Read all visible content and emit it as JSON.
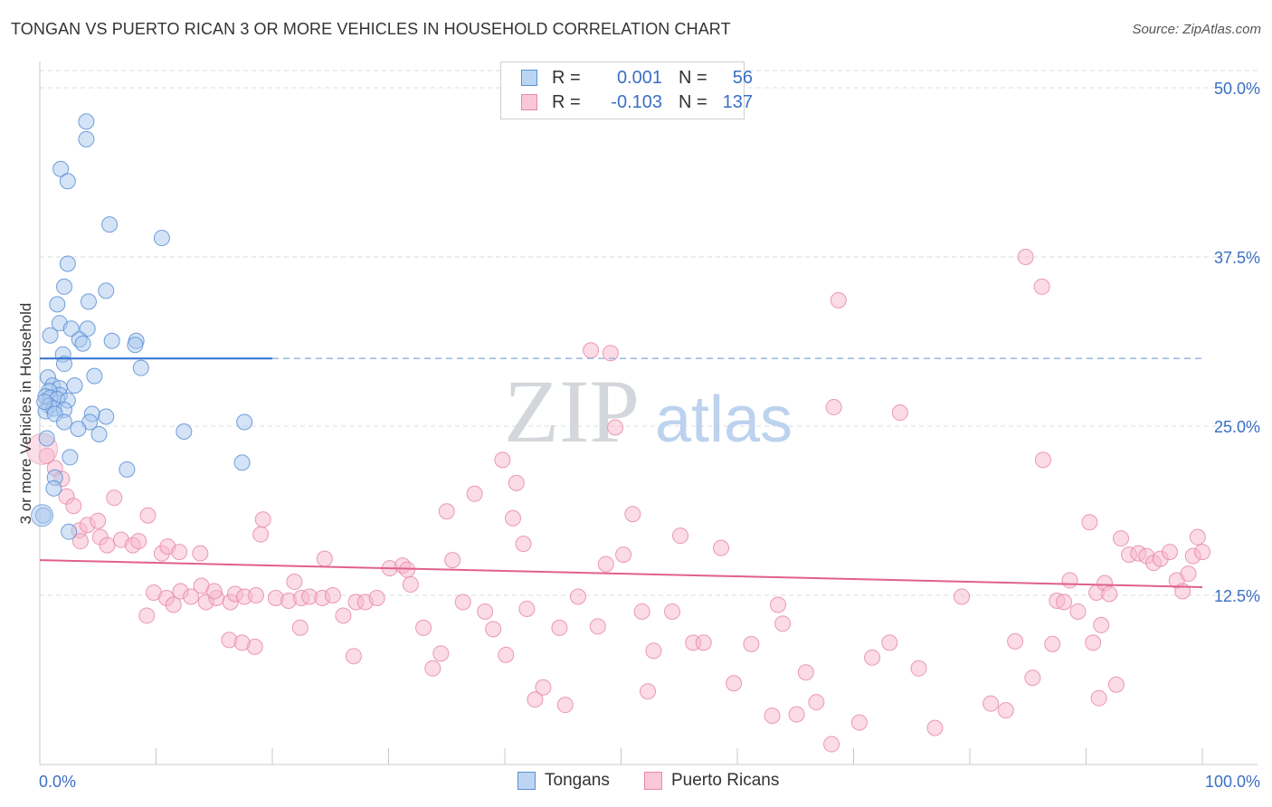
{
  "title": "TONGAN VS PUERTO RICAN 3 OR MORE VEHICLES IN HOUSEHOLD CORRELATION CHART",
  "source": "Source: ZipAtlas.com",
  "watermark": {
    "zip": "ZIP",
    "atlas": "atlas"
  },
  "colors": {
    "tongan_fill": "#a9c8ee",
    "tongan_stroke": "#5a8fd6",
    "tongan_line": "#2e6fd0",
    "pr_fill": "#f7b8cb",
    "pr_stroke": "#e88aa8",
    "pr_line": "#e0608d",
    "axis_text": "#3a6fc4",
    "grid": "#d8dde6"
  },
  "legend": {
    "rows": [
      {
        "r_label": "R =",
        "r_value": "0.001",
        "n_label": "N =",
        "n_value": "56"
      },
      {
        "r_label": "R =",
        "r_value": "-0.103",
        "n_label": "N =",
        "n_value": "137"
      }
    ]
  },
  "bottom_legend": {
    "tongans": "Tongans",
    "puerto_ricans": "Puerto Ricans"
  },
  "chart_data": {
    "type": "scatter",
    "title": "TONGAN VS PUERTO RICAN 3 OR MORE VEHICLES IN HOUSEHOLD CORRELATION CHART",
    "xlabel": "",
    "ylabel": "3 or more Vehicles in Household",
    "xlim": [
      0,
      100
    ],
    "ylim": [
      0,
      50
    ],
    "x_tick_labels": [
      "0.0%",
      "100.0%"
    ],
    "y_ticks": [
      12.5,
      25.0,
      37.5,
      50.0
    ],
    "y_tick_labels": [
      "12.5%",
      "25.0%",
      "37.5%",
      "50.0%"
    ],
    "grid": true,
    "series": [
      {
        "name": "Tongans",
        "R": 0.001,
        "N": 56,
        "trend": {
          "x": [
            0,
            20
          ],
          "y": [
            30.0,
            30.0
          ],
          "dashed_extension_to": 100
        },
        "points": [
          [
            4.0,
            46.2
          ],
          [
            4.0,
            47.5
          ],
          [
            1.8,
            44.0
          ],
          [
            2.4,
            43.1
          ],
          [
            6.0,
            39.9
          ],
          [
            10.5,
            38.9
          ],
          [
            2.4,
            37.0
          ],
          [
            2.1,
            35.3
          ],
          [
            5.7,
            35.0
          ],
          [
            1.5,
            34.0
          ],
          [
            4.2,
            34.2
          ],
          [
            1.7,
            32.6
          ],
          [
            0.9,
            31.7
          ],
          [
            2.7,
            32.2
          ],
          [
            4.1,
            32.2
          ],
          [
            3.4,
            31.4
          ],
          [
            3.7,
            31.1
          ],
          [
            6.2,
            31.3
          ],
          [
            8.3,
            31.3
          ],
          [
            8.2,
            31.0
          ],
          [
            2.0,
            30.3
          ],
          [
            2.1,
            29.6
          ],
          [
            8.7,
            29.3
          ],
          [
            4.7,
            28.7
          ],
          [
            0.7,
            28.6
          ],
          [
            1.1,
            28.0
          ],
          [
            1.7,
            27.8
          ],
          [
            1.7,
            27.3
          ],
          [
            0.8,
            27.6
          ],
          [
            0.5,
            27.2
          ],
          [
            0.9,
            27.1
          ],
          [
            1.5,
            27.0
          ],
          [
            0.8,
            26.5
          ],
          [
            2.4,
            26.9
          ],
          [
            0.5,
            26.1
          ],
          [
            1.2,
            26.3
          ],
          [
            2.1,
            26.2
          ],
          [
            1.3,
            25.9
          ],
          [
            4.5,
            25.9
          ],
          [
            5.7,
            25.7
          ],
          [
            2.1,
            25.3
          ],
          [
            4.3,
            25.3
          ],
          [
            3.3,
            24.8
          ],
          [
            12.4,
            24.6
          ],
          [
            17.6,
            25.3
          ],
          [
            5.1,
            24.4
          ],
          [
            0.6,
            24.1
          ],
          [
            2.6,
            22.7
          ],
          [
            17.4,
            22.3
          ],
          [
            7.5,
            21.8
          ],
          [
            1.3,
            21.2
          ],
          [
            1.2,
            20.4
          ],
          [
            0.3,
            18.4
          ],
          [
            2.5,
            17.2
          ],
          [
            0.4,
            26.8
          ],
          [
            3.0,
            28.0
          ]
        ]
      },
      {
        "name": "Puerto Ricans",
        "R": -0.103,
        "N": 137,
        "trend": {
          "x": [
            0,
            100
          ],
          "y": [
            15.1,
            13.1
          ]
        },
        "points": [
          [
            0.6,
            22.8
          ],
          [
            1.3,
            21.9
          ],
          [
            1.9,
            21.1
          ],
          [
            2.3,
            19.8
          ],
          [
            2.9,
            19.1
          ],
          [
            3.4,
            17.3
          ],
          [
            4.1,
            17.7
          ],
          [
            5.2,
            16.8
          ],
          [
            5.8,
            16.2
          ],
          [
            6.4,
            19.7
          ],
          [
            7.0,
            16.6
          ],
          [
            8.0,
            16.2
          ],
          [
            8.5,
            16.5
          ],
          [
            9.3,
            18.4
          ],
          [
            10.5,
            15.6
          ],
          [
            11.0,
            16.1
          ],
          [
            12.0,
            15.7
          ],
          [
            13.8,
            15.6
          ],
          [
            3.5,
            16.5
          ],
          [
            5.0,
            18.0
          ],
          [
            9.8,
            12.7
          ],
          [
            10.9,
            12.3
          ],
          [
            12.1,
            12.8
          ],
          [
            13.0,
            12.4
          ],
          [
            13.9,
            13.2
          ],
          [
            14.3,
            12.0
          ],
          [
            15.2,
            12.3
          ],
          [
            16.4,
            12.0
          ],
          [
            16.8,
            12.6
          ],
          [
            17.6,
            12.4
          ],
          [
            18.6,
            12.5
          ],
          [
            19.0,
            17.0
          ],
          [
            19.2,
            18.1
          ],
          [
            20.3,
            12.3
          ],
          [
            21.4,
            12.1
          ],
          [
            21.9,
            13.5
          ],
          [
            22.5,
            12.3
          ],
          [
            23.2,
            12.4
          ],
          [
            24.3,
            12.3
          ],
          [
            25.2,
            12.5
          ],
          [
            26.1,
            11.0
          ],
          [
            27.2,
            12.0
          ],
          [
            28.0,
            12.0
          ],
          [
            29.0,
            12.3
          ],
          [
            30.1,
            14.5
          ],
          [
            31.2,
            14.7
          ],
          [
            31.6,
            14.4
          ],
          [
            31.9,
            13.3
          ],
          [
            33.0,
            10.1
          ],
          [
            33.8,
            7.1
          ],
          [
            34.5,
            8.2
          ],
          [
            35.0,
            18.7
          ],
          [
            35.5,
            15.1
          ],
          [
            36.4,
            12.0
          ],
          [
            37.4,
            20.0
          ],
          [
            38.3,
            11.3
          ],
          [
            39.0,
            10.0
          ],
          [
            39.8,
            22.5
          ],
          [
            40.1,
            8.1
          ],
          [
            40.7,
            18.2
          ],
          [
            41.0,
            20.8
          ],
          [
            41.6,
            16.3
          ],
          [
            41.9,
            11.5
          ],
          [
            42.6,
            4.8
          ],
          [
            43.3,
            5.7
          ],
          [
            44.7,
            10.1
          ],
          [
            45.2,
            4.4
          ],
          [
            46.3,
            12.4
          ],
          [
            47.4,
            30.6
          ],
          [
            48.0,
            10.2
          ],
          [
            48.7,
            14.8
          ],
          [
            49.1,
            30.4
          ],
          [
            49.5,
            24.9
          ],
          [
            50.2,
            15.5
          ],
          [
            51.0,
            18.5
          ],
          [
            51.8,
            11.3
          ],
          [
            52.3,
            5.4
          ],
          [
            54.4,
            11.3
          ],
          [
            56.2,
            9.0
          ],
          [
            57.1,
            9.0
          ],
          [
            59.7,
            6.0
          ],
          [
            61.2,
            8.9
          ],
          [
            63.0,
            3.6
          ],
          [
            63.9,
            10.4
          ],
          [
            65.1,
            3.7
          ],
          [
            65.9,
            6.8
          ],
          [
            66.8,
            4.6
          ],
          [
            68.1,
            1.5
          ],
          [
            68.7,
            34.3
          ],
          [
            70.5,
            3.1
          ],
          [
            71.6,
            7.9
          ],
          [
            73.1,
            9.0
          ],
          [
            75.6,
            7.1
          ],
          [
            77.0,
            2.7
          ],
          [
            79.3,
            12.4
          ],
          [
            81.8,
            4.5
          ],
          [
            83.1,
            4.0
          ],
          [
            85.4,
            6.4
          ],
          [
            86.2,
            35.3
          ],
          [
            86.3,
            22.5
          ],
          [
            87.1,
            8.9
          ],
          [
            87.5,
            12.1
          ],
          [
            88.1,
            12.0
          ],
          [
            88.6,
            13.6
          ],
          [
            89.3,
            11.3
          ],
          [
            90.3,
            17.9
          ],
          [
            90.9,
            12.7
          ],
          [
            91.6,
            13.4
          ],
          [
            92.0,
            12.6
          ],
          [
            93.0,
            16.7
          ],
          [
            93.7,
            15.5
          ],
          [
            94.5,
            15.6
          ],
          [
            95.2,
            15.4
          ],
          [
            95.8,
            14.9
          ],
          [
            96.4,
            15.2
          ],
          [
            97.2,
            15.7
          ],
          [
            97.8,
            13.6
          ],
          [
            98.3,
            12.8
          ],
          [
            98.8,
            14.1
          ],
          [
            99.2,
            15.4
          ],
          [
            99.6,
            16.8
          ],
          [
            100.0,
            15.7
          ],
          [
            84.8,
            37.5
          ],
          [
            74.0,
            26.0
          ],
          [
            68.3,
            26.4
          ],
          [
            92.6,
            5.9
          ],
          [
            91.1,
            4.9
          ],
          [
            90.6,
            9.0
          ],
          [
            83.9,
            9.1
          ],
          [
            91.3,
            10.3
          ],
          [
            63.5,
            11.8
          ],
          [
            58.6,
            16.0
          ],
          [
            55.1,
            16.9
          ],
          [
            52.8,
            8.4
          ],
          [
            24.5,
            15.2
          ],
          [
            27.0,
            8.0
          ],
          [
            22.4,
            10.1
          ],
          [
            18.5,
            8.7
          ],
          [
            16.3,
            9.2
          ],
          [
            17.4,
            9.0
          ],
          [
            15.0,
            12.8
          ],
          [
            11.5,
            11.8
          ],
          [
            9.2,
            11.0
          ]
        ]
      }
    ]
  }
}
